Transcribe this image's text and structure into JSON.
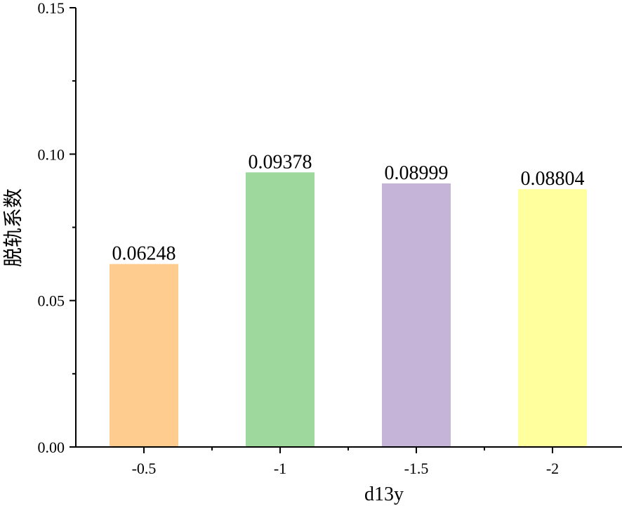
{
  "chart_data": {
    "type": "bar",
    "categories": [
      "-0.5",
      "-1",
      "-1.5",
      "-2"
    ],
    "values": [
      0.06248,
      0.09378,
      0.08999,
      0.08804
    ],
    "data_labels": [
      "0.06248",
      "0.09378",
      "0.08999",
      "0.08804"
    ],
    "colors": [
      "#FFCC8F",
      "#9FD89C",
      "#C6B4D8",
      "#FFFF9E"
    ],
    "title": "",
    "xlabel": "d13y",
    "ylabel": "脱轨系数",
    "ylim": [
      0,
      0.15
    ],
    "yticks": [
      0.0,
      0.05,
      0.1,
      0.15
    ],
    "ytick_labels": [
      "0.00",
      "0.05",
      "0.10",
      "0.15"
    ],
    "grid": false,
    "legend": "none"
  }
}
